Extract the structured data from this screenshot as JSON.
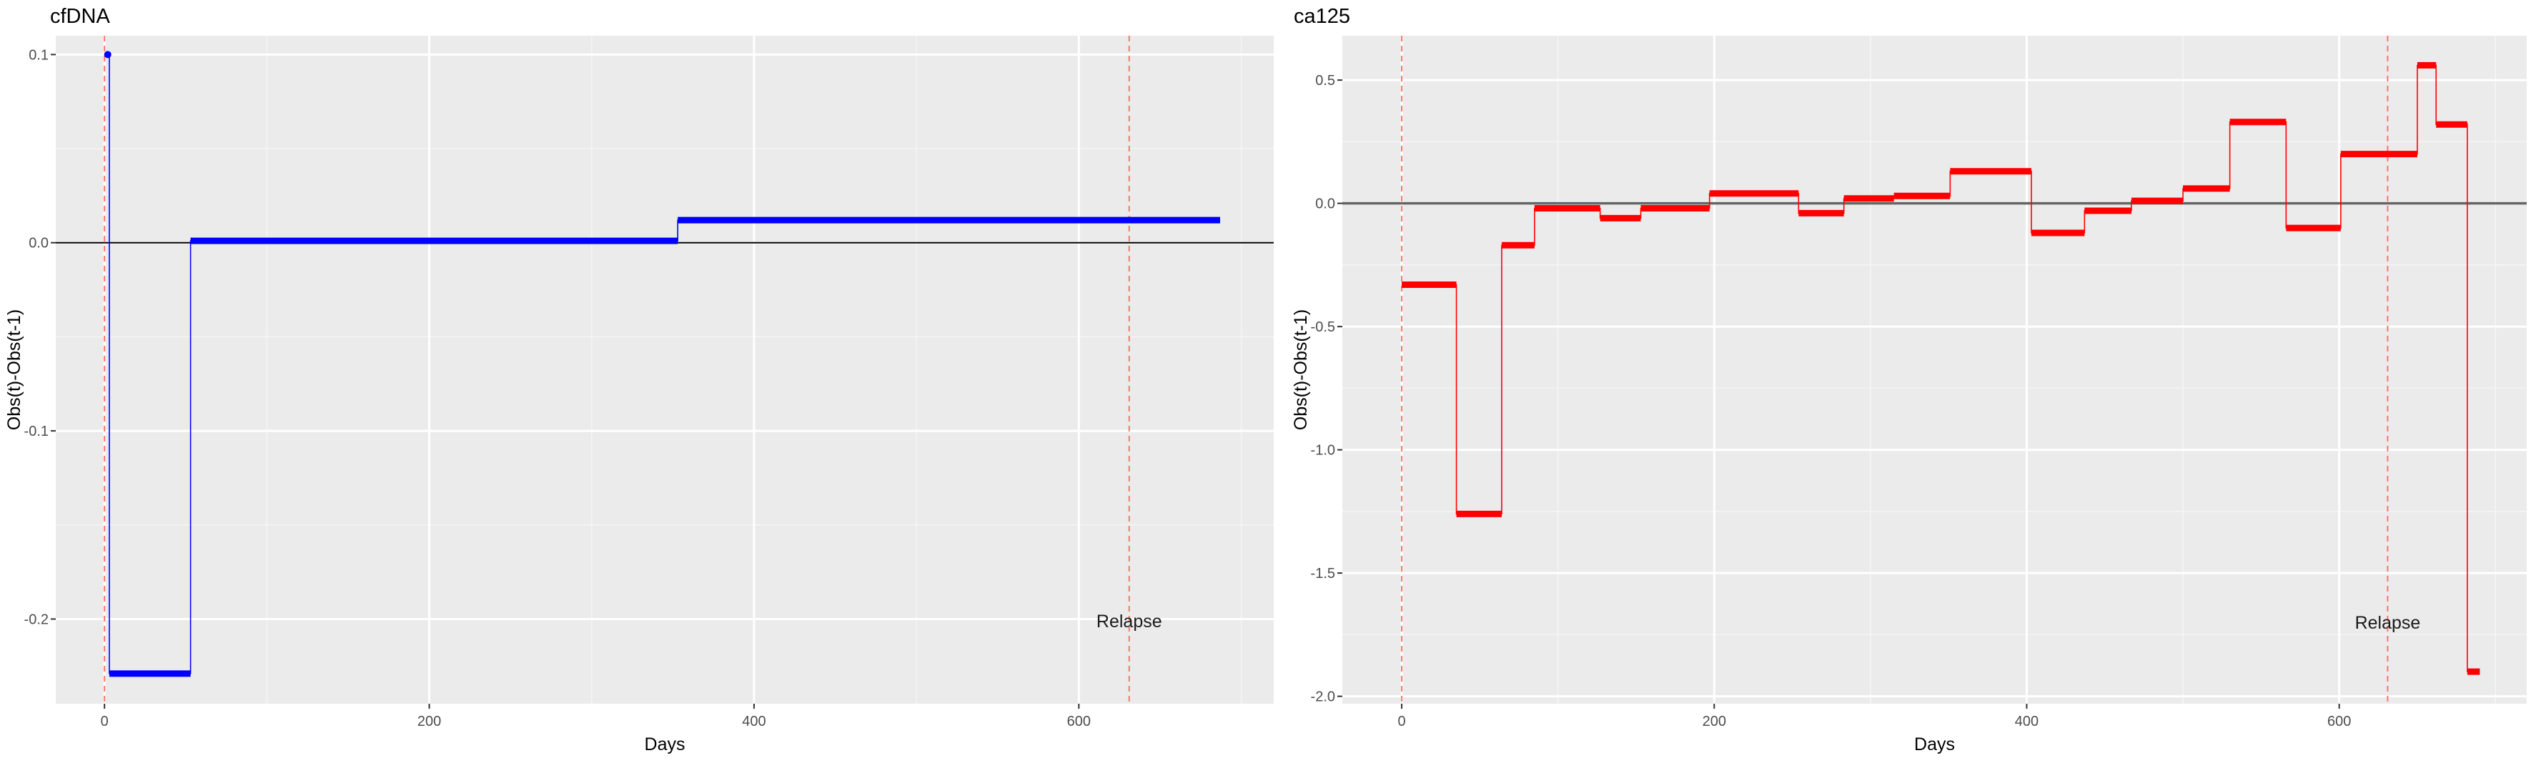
{
  "chart_data": [
    {
      "type": "line",
      "title": "cfDNA",
      "xlabel": "Days",
      "ylabel": "Obs(t)-Obs(t-1)",
      "xlim": [
        -30,
        720
      ],
      "ylim": [
        -0.245,
        0.11
      ],
      "x_ticks": [
        0,
        200,
        400,
        600
      ],
      "x_tick_labels": [
        "0",
        "200",
        "400",
        "600"
      ],
      "y_ticks": [
        -0.2,
        -0.1,
        0.0,
        0.1
      ],
      "y_tick_labels": [
        "-0.2",
        "-0.1",
        "0.0",
        "0.1"
      ],
      "grid": true,
      "hline": 0,
      "vlines": [
        0,
        631
      ],
      "annotation": {
        "text": "Relapse",
        "x": 631,
        "y": -0.201
      },
      "series": [
        {
          "color": "#0000ff",
          "steps": [
            {
              "x0": 2,
              "x1": 3,
              "y": 0.1
            },
            {
              "x0": 3,
              "x1": 53,
              "y": -0.229
            },
            {
              "x0": 53,
              "x1": 353,
              "y": 0.001
            },
            {
              "x0": 353,
              "x1": 687,
              "y": 0.012
            }
          ]
        }
      ]
    },
    {
      "type": "line",
      "title": "ca125",
      "xlabel": "Days",
      "ylabel": "Obs(t)-Obs(t-1)",
      "xlim": [
        -38,
        720
      ],
      "ylim": [
        -2.03,
        0.68
      ],
      "x_ticks": [
        0,
        200,
        400,
        600
      ],
      "x_tick_labels": [
        "0",
        "200",
        "400",
        "600"
      ],
      "y_ticks": [
        -2.0,
        -1.5,
        -1.0,
        -0.5,
        0.0,
        0.5
      ],
      "y_tick_labels": [
        "-2.0",
        "-1.5",
        "-1.0",
        "-0.5",
        "0.0",
        "0.5"
      ],
      "grid": true,
      "hline": 0,
      "vlines": [
        0,
        631
      ],
      "annotation": {
        "text": "Relapse",
        "x": 631,
        "y": -1.7
      },
      "series": [
        {
          "color": "#ff0000",
          "steps": [
            {
              "x0": 0,
              "x1": 35,
              "y": -0.33
            },
            {
              "x0": 35,
              "x1": 64,
              "y": -1.26
            },
            {
              "x0": 64,
              "x1": 85,
              "y": -0.17
            },
            {
              "x0": 85,
              "x1": 127,
              "y": -0.02
            },
            {
              "x0": 127,
              "x1": 153,
              "y": -0.06
            },
            {
              "x0": 153,
              "x1": 197,
              "y": -0.02
            },
            {
              "x0": 197,
              "x1": 254,
              "y": 0.04
            },
            {
              "x0": 254,
              "x1": 283,
              "y": -0.04
            },
            {
              "x0": 283,
              "x1": 315,
              "y": 0.02
            },
            {
              "x0": 315,
              "x1": 351,
              "y": 0.03
            },
            {
              "x0": 351,
              "x1": 403,
              "y": 0.13
            },
            {
              "x0": 403,
              "x1": 437,
              "y": -0.12
            },
            {
              "x0": 437,
              "x1": 467,
              "y": -0.03
            },
            {
              "x0": 467,
              "x1": 500,
              "y": 0.01
            },
            {
              "x0": 500,
              "x1": 530,
              "y": 0.06
            },
            {
              "x0": 530,
              "x1": 566,
              "y": 0.33
            },
            {
              "x0": 566,
              "x1": 601,
              "y": -0.1
            },
            {
              "x0": 601,
              "x1": 650,
              "y": 0.2
            },
            {
              "x0": 650,
              "x1": 662,
              "y": 0.56
            },
            {
              "x0": 662,
              "x1": 682,
              "y": 0.32
            },
            {
              "x0": 682,
              "x1": 690,
              "y": -1.9
            }
          ]
        }
      ]
    }
  ]
}
